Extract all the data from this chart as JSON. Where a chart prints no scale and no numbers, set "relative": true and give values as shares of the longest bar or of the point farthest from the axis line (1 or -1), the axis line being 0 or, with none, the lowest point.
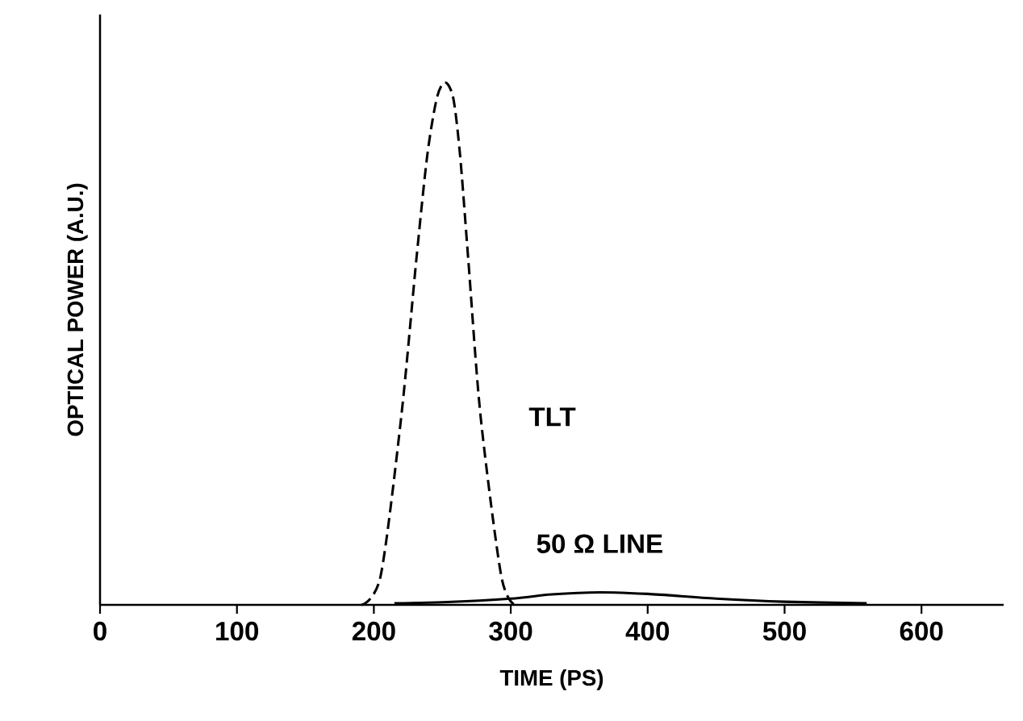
{
  "chart_data": {
    "type": "line",
    "relative": true,
    "xlabel": "TIME (PS)",
    "ylabel": "OPTICAL POWER (A.U.)",
    "xlim": [
      0,
      660
    ],
    "xticks": [
      0,
      100,
      200,
      300,
      400,
      500,
      600
    ],
    "grid": false,
    "marker": "none",
    "series": [
      {
        "name": "TLT",
        "color": "#000000",
        "line_style": "dashed",
        "x": [
          191,
          205,
          220,
          231,
          239,
          246,
          252,
          258,
          263,
          269,
          278,
          293,
          303
        ],
        "values": [
          0,
          0.056,
          0.36,
          0.66,
          0.86,
          0.97,
          1,
          0.97,
          0.86,
          0.66,
          0.36,
          0.056,
          0
        ]
      },
      {
        "name": "50 Ω LINE",
        "color": "#000000",
        "line_style": "solid",
        "x": [
          215,
          250,
          300,
          330,
          365,
          400,
          450,
          500,
          560
        ],
        "values": [
          0.003,
          0.005,
          0.012,
          0.02,
          0.024,
          0.021,
          0.012,
          0.006,
          0.003
        ]
      }
    ]
  }
}
